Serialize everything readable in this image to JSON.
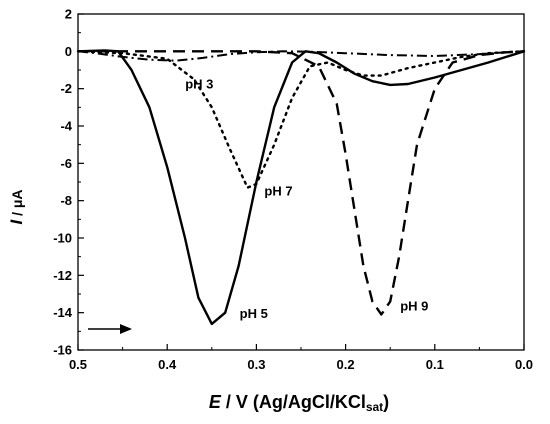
{
  "chart_data": {
    "type": "line",
    "xlabel": {
      "symbol": "E",
      "rest": " / V (Ag/AgCl/KCl",
      "sub": "sat",
      "close": ")"
    },
    "ylabel": {
      "symbol": "I",
      "rest": " / μA"
    },
    "xlim": [
      0.5,
      0.0
    ],
    "ylim": [
      -16,
      2
    ],
    "x_ticks": [
      "0.5",
      "0.4",
      "0.3",
      "0.2",
      "0.1",
      "0.0"
    ],
    "y_ticks": [
      "2",
      "0",
      "-2",
      "-4",
      "-6",
      "-8",
      "-10",
      "-12",
      "-14",
      "-16"
    ],
    "scan_direction_arrow": "right",
    "series": [
      {
        "label": "pH 3",
        "style": "dash-dot",
        "points": [
          [
            0.5,
            0.0
          ],
          [
            0.48,
            -0.1
          ],
          [
            0.45,
            -0.3
          ],
          [
            0.42,
            -0.45
          ],
          [
            0.39,
            -0.5
          ],
          [
            0.36,
            -0.35
          ],
          [
            0.33,
            -0.15
          ],
          [
            0.3,
            -0.05
          ],
          [
            0.27,
            0.0
          ],
          [
            0.24,
            -0.02
          ],
          [
            0.2,
            -0.1
          ],
          [
            0.15,
            -0.2
          ],
          [
            0.1,
            -0.25
          ],
          [
            0.05,
            -0.15
          ],
          [
            0.02,
            -0.05
          ],
          [
            0.0,
            0.0
          ]
        ]
      },
      {
        "label": "pH 5",
        "style": "solid",
        "points": [
          [
            0.5,
            0.0
          ],
          [
            0.47,
            0.05
          ],
          [
            0.455,
            0.0
          ],
          [
            0.44,
            -1.0
          ],
          [
            0.42,
            -3.0
          ],
          [
            0.4,
            -6.2
          ],
          [
            0.38,
            -10.0
          ],
          [
            0.365,
            -13.2
          ],
          [
            0.35,
            -14.6
          ],
          [
            0.335,
            -14.0
          ],
          [
            0.32,
            -11.5
          ],
          [
            0.3,
            -7.0
          ],
          [
            0.28,
            -3.0
          ],
          [
            0.26,
            -0.6
          ],
          [
            0.245,
            0.0
          ],
          [
            0.23,
            -0.1
          ],
          [
            0.21,
            -0.6
          ],
          [
            0.19,
            -1.2
          ],
          [
            0.17,
            -1.6
          ],
          [
            0.15,
            -1.8
          ],
          [
            0.13,
            -1.75
          ],
          [
            0.1,
            -1.4
          ],
          [
            0.07,
            -1.0
          ],
          [
            0.04,
            -0.6
          ],
          [
            0.02,
            -0.3
          ],
          [
            0.0,
            0.0
          ]
        ]
      },
      {
        "label": "pH 7",
        "style": "dotted",
        "points": [
          [
            0.5,
            0.0
          ],
          [
            0.45,
            -0.1
          ],
          [
            0.4,
            -0.4
          ],
          [
            0.37,
            -1.5
          ],
          [
            0.35,
            -3.0
          ],
          [
            0.33,
            -5.2
          ],
          [
            0.31,
            -7.3
          ],
          [
            0.3,
            -7.1
          ],
          [
            0.28,
            -5.0
          ],
          [
            0.26,
            -2.5
          ],
          [
            0.24,
            -0.8
          ],
          [
            0.22,
            -0.6
          ],
          [
            0.2,
            -1.0
          ],
          [
            0.18,
            -1.3
          ],
          [
            0.16,
            -1.3
          ],
          [
            0.13,
            -0.9
          ],
          [
            0.1,
            -0.6
          ],
          [
            0.07,
            -0.3
          ],
          [
            0.04,
            -0.1
          ],
          [
            0.0,
            0.0
          ]
        ]
      },
      {
        "label": "pH 9",
        "style": "dashed",
        "points": [
          [
            0.5,
            0.0
          ],
          [
            0.3,
            0.0
          ],
          [
            0.26,
            -0.1
          ],
          [
            0.23,
            -0.8
          ],
          [
            0.21,
            -2.8
          ],
          [
            0.2,
            -5.5
          ],
          [
            0.19,
            -8.5
          ],
          [
            0.18,
            -11.5
          ],
          [
            0.17,
            -13.4
          ],
          [
            0.16,
            -14.1
          ],
          [
            0.15,
            -13.4
          ],
          [
            0.14,
            -11.0
          ],
          [
            0.13,
            -8.0
          ],
          [
            0.12,
            -5.0
          ],
          [
            0.1,
            -2.0
          ],
          [
            0.08,
            -0.6
          ],
          [
            0.05,
            -0.2
          ],
          [
            0.02,
            -0.05
          ],
          [
            0.0,
            0.0
          ]
        ]
      }
    ]
  }
}
